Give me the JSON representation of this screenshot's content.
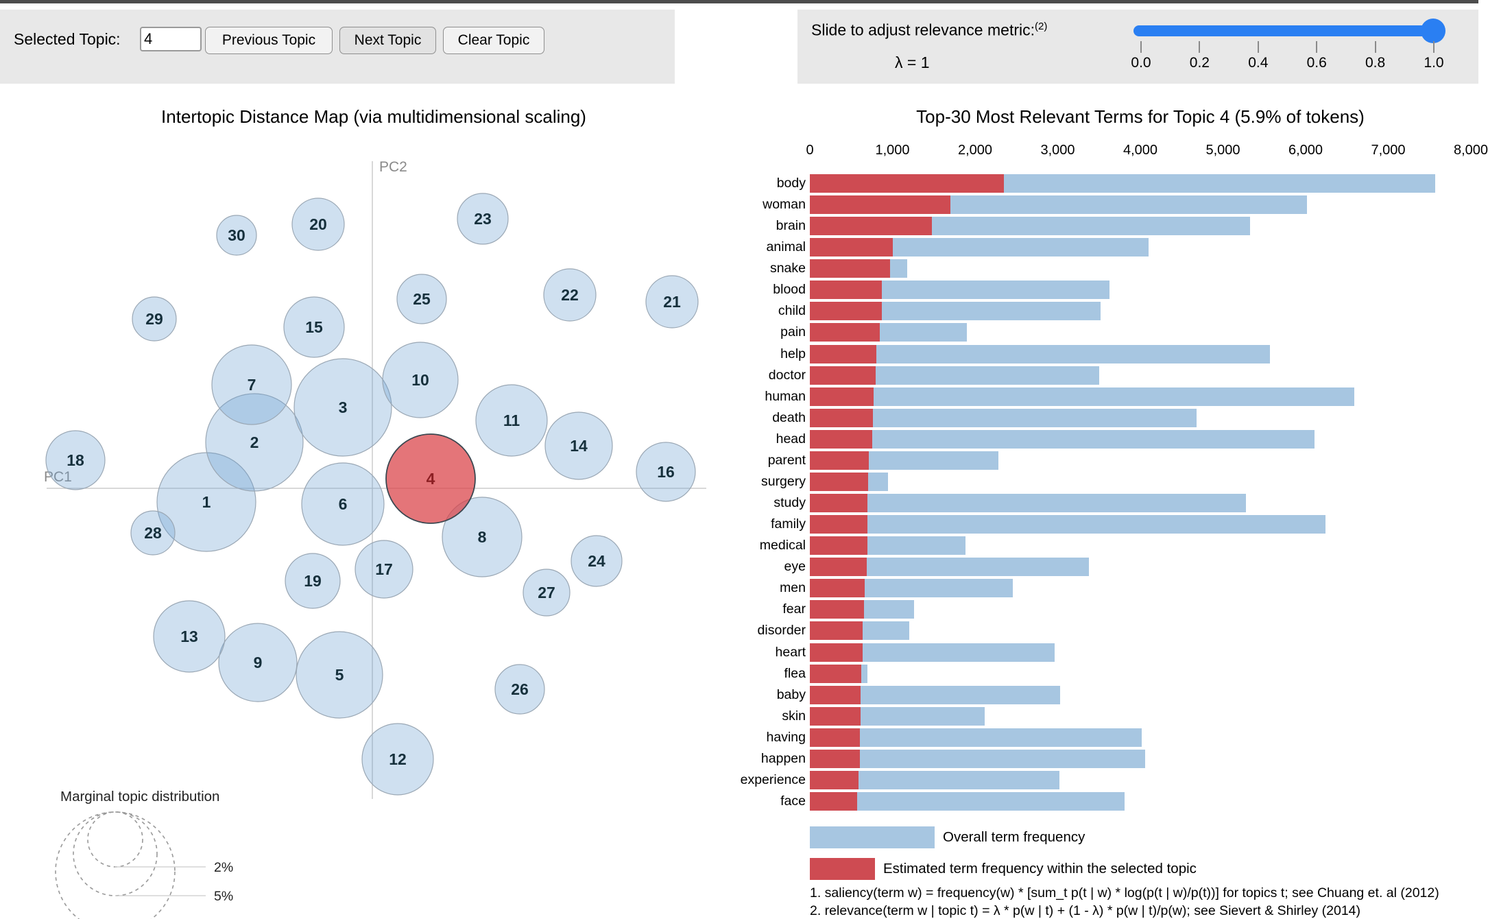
{
  "window": {
    "top_strip_color": "#4d4d4d"
  },
  "controls": {
    "selected_topic_label": "Selected Topic:",
    "topic_value": "4",
    "prev_label": "Previous Topic",
    "next_label": "Next Topic",
    "clear_label": "Clear Topic"
  },
  "relevance": {
    "label": "Slide to adjust relevance metric:",
    "footnote_ref": "(2)",
    "lambda_text": "λ = 1",
    "value": 1.0,
    "ticks": [
      "0.0",
      "0.2",
      "0.4",
      "0.6",
      "0.8",
      "1.0"
    ],
    "track_color": "#2a7ff2"
  },
  "map": {
    "title": "Intertopic Distance Map (via multidimensional scaling)",
    "x_axis_label": "PC1",
    "y_axis_label": "PC2",
    "size_legend": {
      "title": "Marginal topic distribution",
      "labels": [
        "2%",
        "5%"
      ]
    },
    "colors": {
      "bubble_fill": "#6a9fd0",
      "bubble_stroke": "#9aa7b4",
      "selected_fill": "#d94045",
      "selected_stroke": "#3b4750",
      "label_color": "#16303c",
      "selected_label_color": "#8c1f23",
      "axis_color": "#c2c2c2",
      "axis_label_color": "#8a8a8a"
    }
  },
  "barchart": {
    "title": "Top-30 Most Relevant Terms for Topic 4 (5.9% of tokens)",
    "bar_blue": "#a7c6e1",
    "bar_red": "#ce4b52",
    "legend": [
      {
        "label": "Overall term frequency"
      },
      {
        "label": "Estimated term frequency within the selected topic"
      }
    ],
    "footnotes": [
      "1. saliency(term w) = frequency(w) * [sum_t p(t | w) * log(p(t | w)/p(t))] for topics t; see Chuang et. al (2012)",
      "2. relevance(term w | topic t) = λ * p(w | t) + (1 - λ) * p(w | t)/p(w); see Sievert & Shirley (2014)"
    ]
  },
  "chart_data": [
    {
      "type": "scatter",
      "title": "Intertopic Distance Map (via multidimensional scaling)",
      "xlabel": "PC1",
      "ylabel": "PC2",
      "note": "bubble positions/radii in screen px; area encodes marginal topic distribution (legend 2%, 5%)",
      "selected_topic": 4,
      "points": [
        {
          "topic": 1,
          "x": 301,
          "y": 732,
          "r": 72,
          "selected": false
        },
        {
          "topic": 2,
          "x": 371,
          "y": 645,
          "r": 71,
          "selected": false
        },
        {
          "topic": 3,
          "x": 500,
          "y": 594,
          "r": 71,
          "selected": false
        },
        {
          "topic": 4,
          "x": 628,
          "y": 698,
          "r": 65,
          "selected": true
        },
        {
          "topic": 5,
          "x": 495,
          "y": 984,
          "r": 63,
          "selected": false
        },
        {
          "topic": 6,
          "x": 500,
          "y": 735,
          "r": 60,
          "selected": false
        },
        {
          "topic": 7,
          "x": 367,
          "y": 561,
          "r": 58,
          "selected": false
        },
        {
          "topic": 8,
          "x": 703,
          "y": 783,
          "r": 58,
          "selected": false
        },
        {
          "topic": 9,
          "x": 376,
          "y": 966,
          "r": 57,
          "selected": false
        },
        {
          "topic": 10,
          "x": 613,
          "y": 554,
          "r": 55,
          "selected": false
        },
        {
          "topic": 11,
          "x": 746,
          "y": 613,
          "r": 52,
          "selected": false
        },
        {
          "topic": 12,
          "x": 580,
          "y": 1107,
          "r": 52,
          "selected": false
        },
        {
          "topic": 13,
          "x": 276,
          "y": 928,
          "r": 52,
          "selected": false
        },
        {
          "topic": 14,
          "x": 844,
          "y": 650,
          "r": 49,
          "selected": false
        },
        {
          "topic": 15,
          "x": 458,
          "y": 477,
          "r": 44,
          "selected": false
        },
        {
          "topic": 16,
          "x": 971,
          "y": 688,
          "r": 43,
          "selected": false
        },
        {
          "topic": 17,
          "x": 560,
          "y": 830,
          "r": 42,
          "selected": false
        },
        {
          "topic": 18,
          "x": 110,
          "y": 671,
          "r": 43,
          "selected": false
        },
        {
          "topic": 19,
          "x": 456,
          "y": 847,
          "r": 40,
          "selected": false
        },
        {
          "topic": 20,
          "x": 464,
          "y": 327,
          "r": 38,
          "selected": false
        },
        {
          "topic": 21,
          "x": 980,
          "y": 440,
          "r": 38,
          "selected": false
        },
        {
          "topic": 22,
          "x": 831,
          "y": 430,
          "r": 38,
          "selected": false
        },
        {
          "topic": 23,
          "x": 704,
          "y": 319,
          "r": 37,
          "selected": false
        },
        {
          "topic": 24,
          "x": 870,
          "y": 818,
          "r": 37,
          "selected": false
        },
        {
          "topic": 25,
          "x": 615,
          "y": 436,
          "r": 36,
          "selected": false
        },
        {
          "topic": 26,
          "x": 758,
          "y": 1005,
          "r": 36,
          "selected": false
        },
        {
          "topic": 27,
          "x": 797,
          "y": 864,
          "r": 34,
          "selected": false
        },
        {
          "topic": 28,
          "x": 223,
          "y": 777,
          "r": 32,
          "selected": false
        },
        {
          "topic": 29,
          "x": 225,
          "y": 465,
          "r": 32,
          "selected": false
        },
        {
          "topic": 30,
          "x": 345,
          "y": 343,
          "r": 29,
          "selected": false
        }
      ]
    },
    {
      "type": "bar",
      "orientation": "horizontal",
      "title": "Top-30 Most Relevant Terms for Topic 4 (5.9% of tokens)",
      "xlim": [
        0,
        8000
      ],
      "x_ticks": [
        "0",
        "1,000",
        "2,000",
        "3,000",
        "4,000",
        "5,000",
        "6,000",
        "7,000",
        "8,000"
      ],
      "categories": [
        "body",
        "woman",
        "brain",
        "animal",
        "snake",
        "blood",
        "child",
        "pain",
        "help",
        "doctor",
        "human",
        "death",
        "head",
        "parent",
        "surgery",
        "study",
        "family",
        "medical",
        "eye",
        "men",
        "fear",
        "disorder",
        "heart",
        "flea",
        "baby",
        "skin",
        "having",
        "happen",
        "experience",
        "face"
      ],
      "series": [
        {
          "name": "Overall term frequency",
          "values": [
            7570,
            6020,
            5330,
            4100,
            1180,
            3630,
            3520,
            1900,
            5570,
            3500,
            6590,
            4680,
            6110,
            2280,
            950,
            5280,
            6240,
            1880,
            3380,
            2460,
            1260,
            1200,
            2960,
            700,
            3030,
            2120,
            4020,
            4060,
            3020,
            3810
          ]
        },
        {
          "name": "Estimated term frequency within the selected topic",
          "values": [
            2350,
            1700,
            1480,
            1000,
            970,
            875,
            870,
            845,
            805,
            800,
            770,
            765,
            755,
            710,
            705,
            700,
            698,
            693,
            687,
            660,
            653,
            642,
            637,
            620,
            614,
            614,
            603,
            603,
            586,
            575
          ]
        }
      ],
      "legend_position": "bottom"
    }
  ]
}
